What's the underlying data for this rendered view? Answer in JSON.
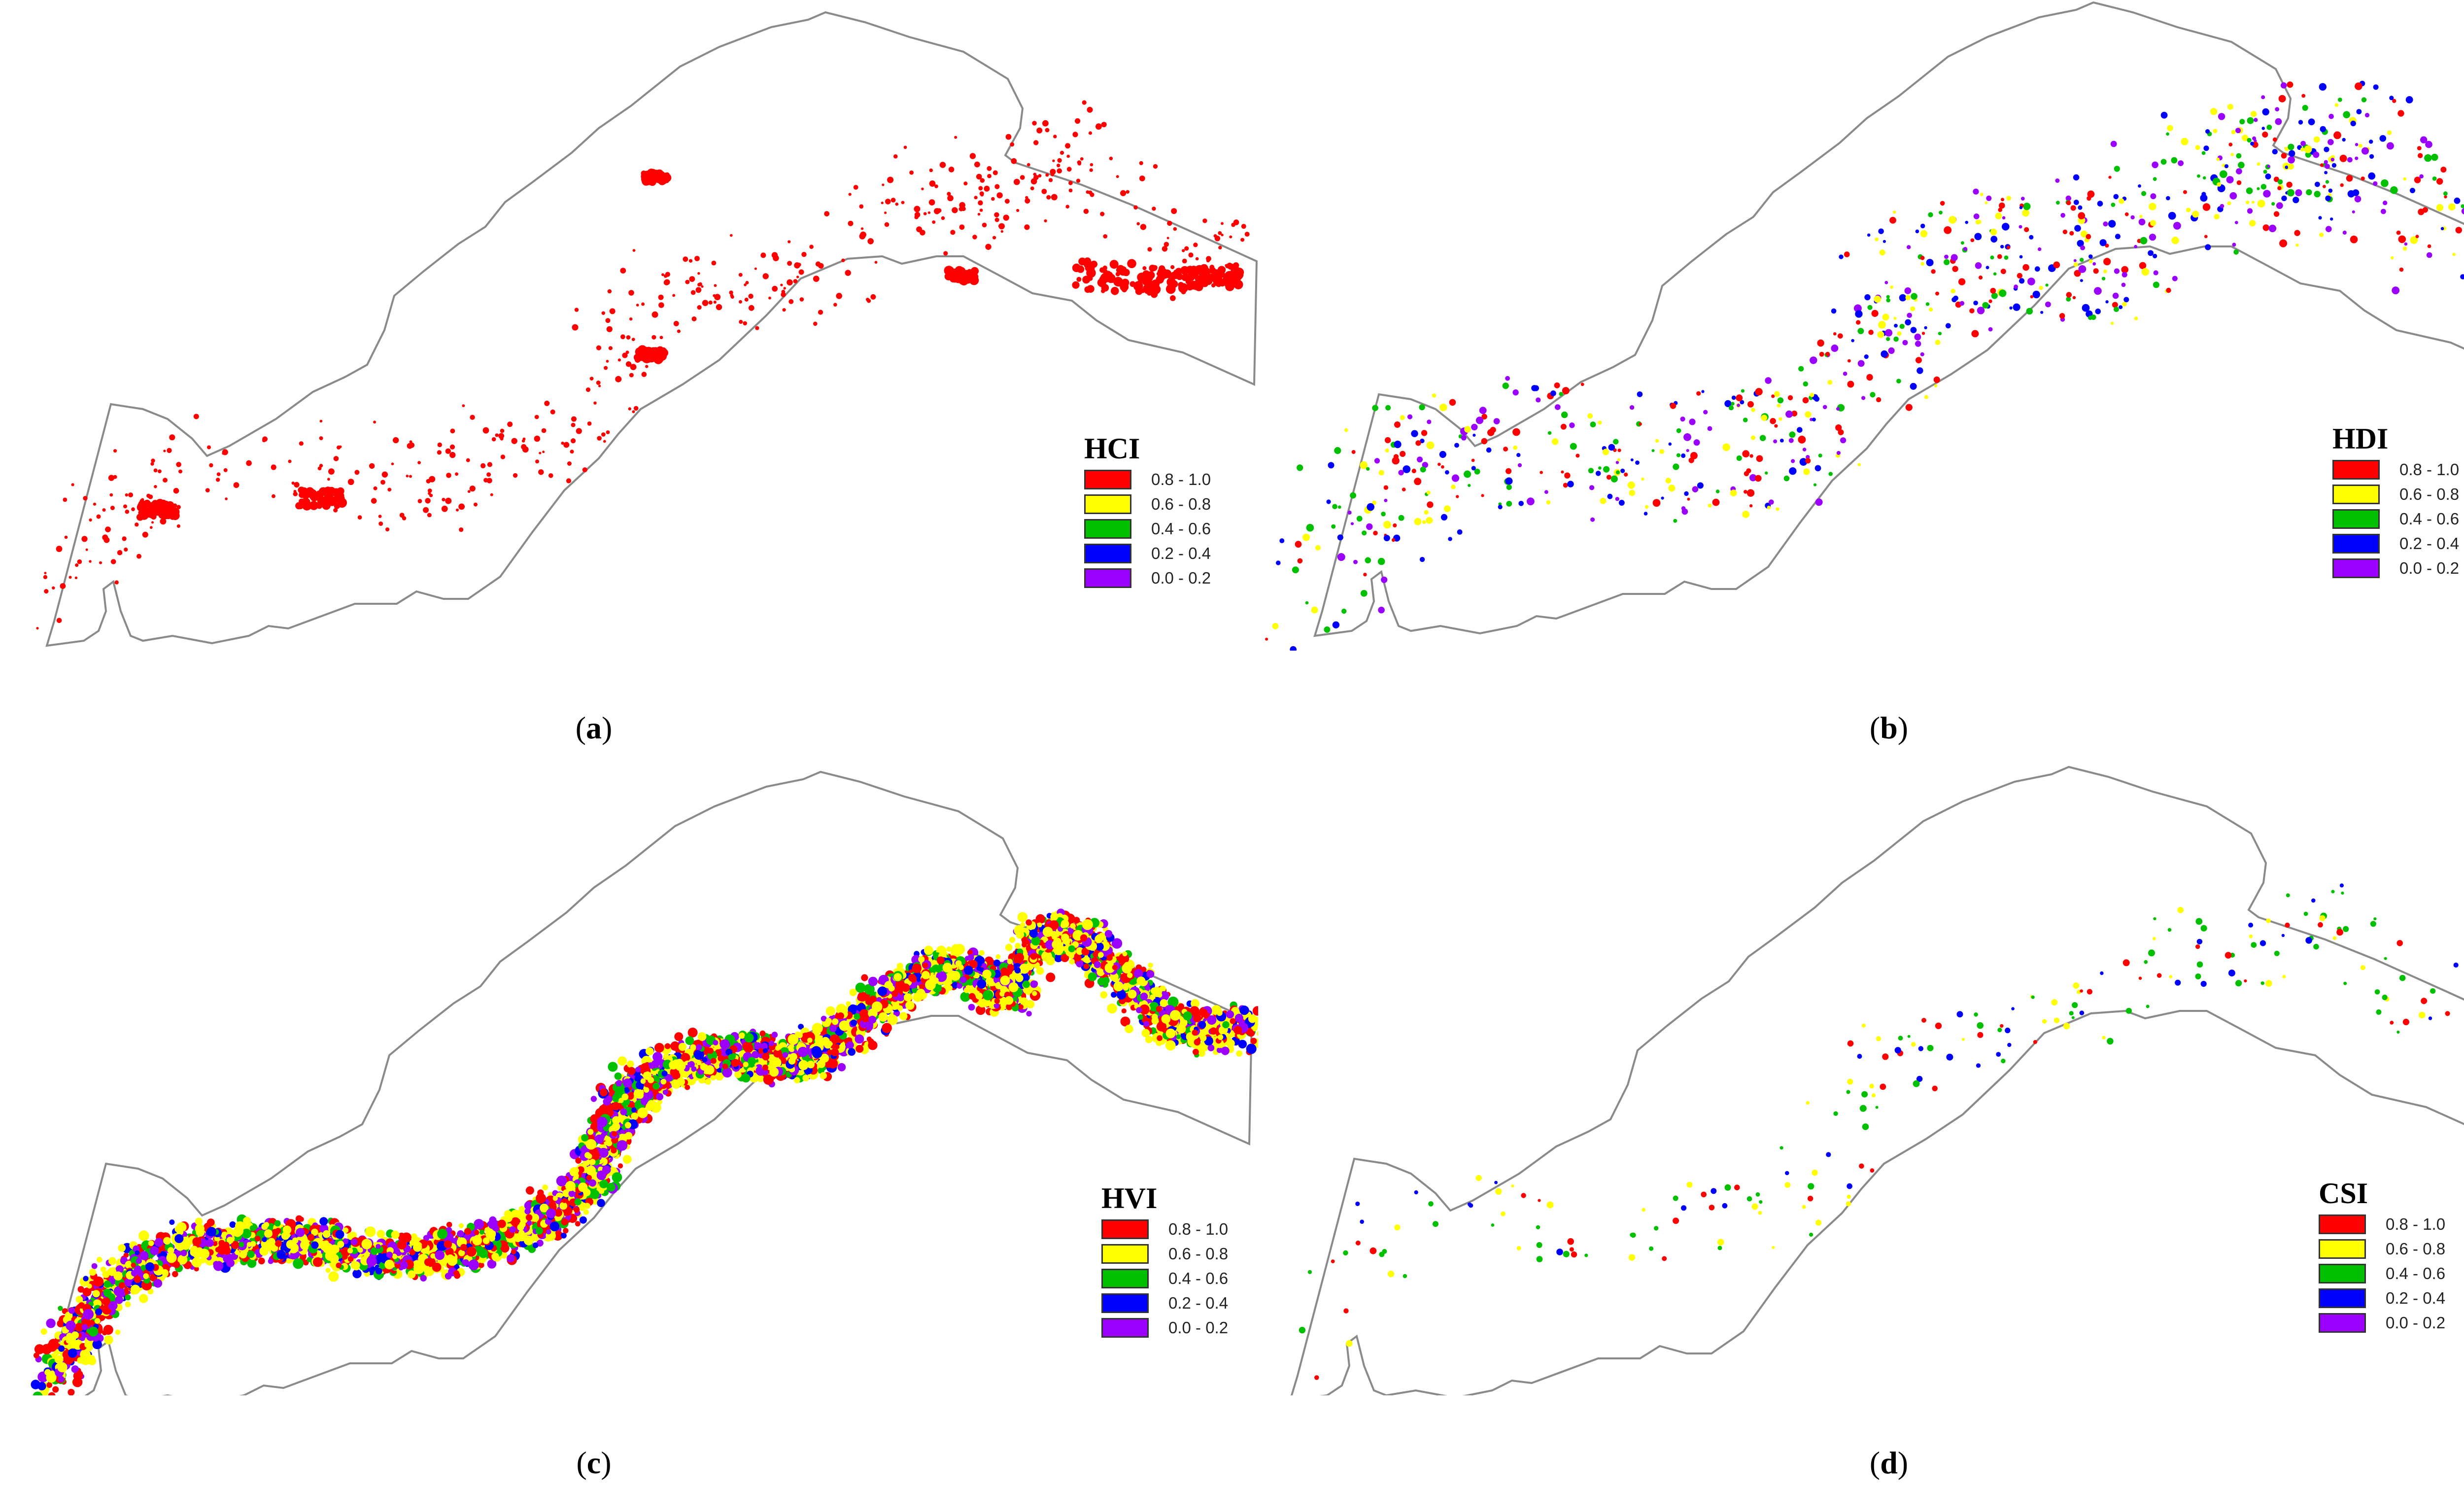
{
  "panels": [
    {
      "id": "a",
      "caption_letter": "a",
      "legend_title": "HCI"
    },
    {
      "id": "b",
      "caption_letter": "b",
      "legend_title": "HDI"
    },
    {
      "id": "c",
      "caption_letter": "c",
      "legend_title": "HVI"
    },
    {
      "id": "d",
      "caption_letter": "d",
      "legend_title": "CSI"
    }
  ],
  "legend_classes": [
    {
      "label": "0.8 - 1.0",
      "color": "#ff0000"
    },
    {
      "label": "0.6 - 0.8",
      "color": "#ffff00"
    },
    {
      "label": "0.4 - 0.6",
      "color": "#00c000"
    },
    {
      "label": "0.2 - 0.4",
      "color": "#0000ff"
    },
    {
      "label": "0.0 - 0.2",
      "color": "#9b00ff"
    }
  ],
  "boundary_color": "#8a8a8a"
}
